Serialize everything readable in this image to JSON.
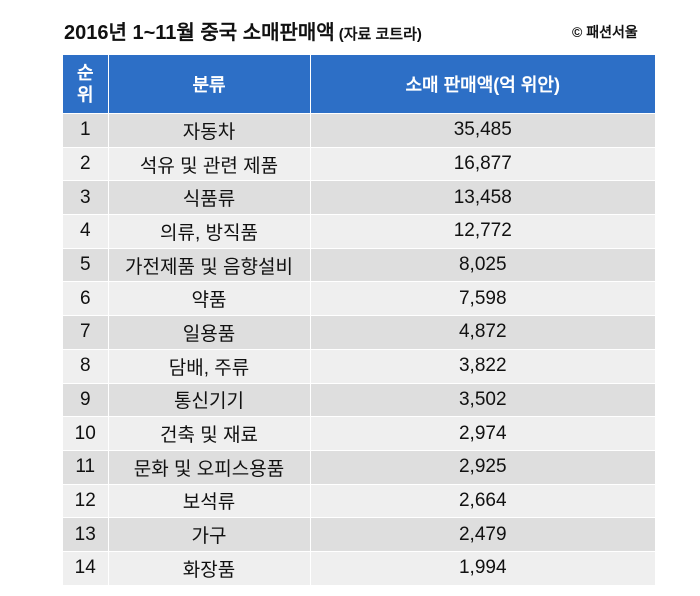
{
  "header": {
    "title": "2016년 1~11월 중국 소매판매액",
    "source": "(자료 코트라)",
    "credit": "© 패션서울"
  },
  "table": {
    "columns": [
      "순위",
      "분류",
      "소매 판매액(억 위안)"
    ],
    "rows": [
      [
        "1",
        "자동차",
        "35,485"
      ],
      [
        "2",
        "석유 및 관련 제품",
        "16,877"
      ],
      [
        "3",
        "식품류",
        "13,458"
      ],
      [
        "4",
        "의류, 방직품",
        "12,772"
      ],
      [
        "5",
        "가전제품 및 음향설비",
        "8,025"
      ],
      [
        "6",
        "약품",
        "7,598"
      ],
      [
        "7",
        "일용품",
        "4,872"
      ],
      [
        "8",
        "담배, 주류",
        "3,822"
      ],
      [
        "9",
        "통신기기",
        "3,502"
      ],
      [
        "10",
        "건축 및 재료",
        "2,974"
      ],
      [
        "11",
        "문화 및 오피스용품",
        "2,925"
      ],
      [
        "12",
        "보석류",
        "2,664"
      ],
      [
        "13",
        "가구",
        "2,479"
      ],
      [
        "14",
        "화장품",
        "1,994"
      ]
    ]
  }
}
